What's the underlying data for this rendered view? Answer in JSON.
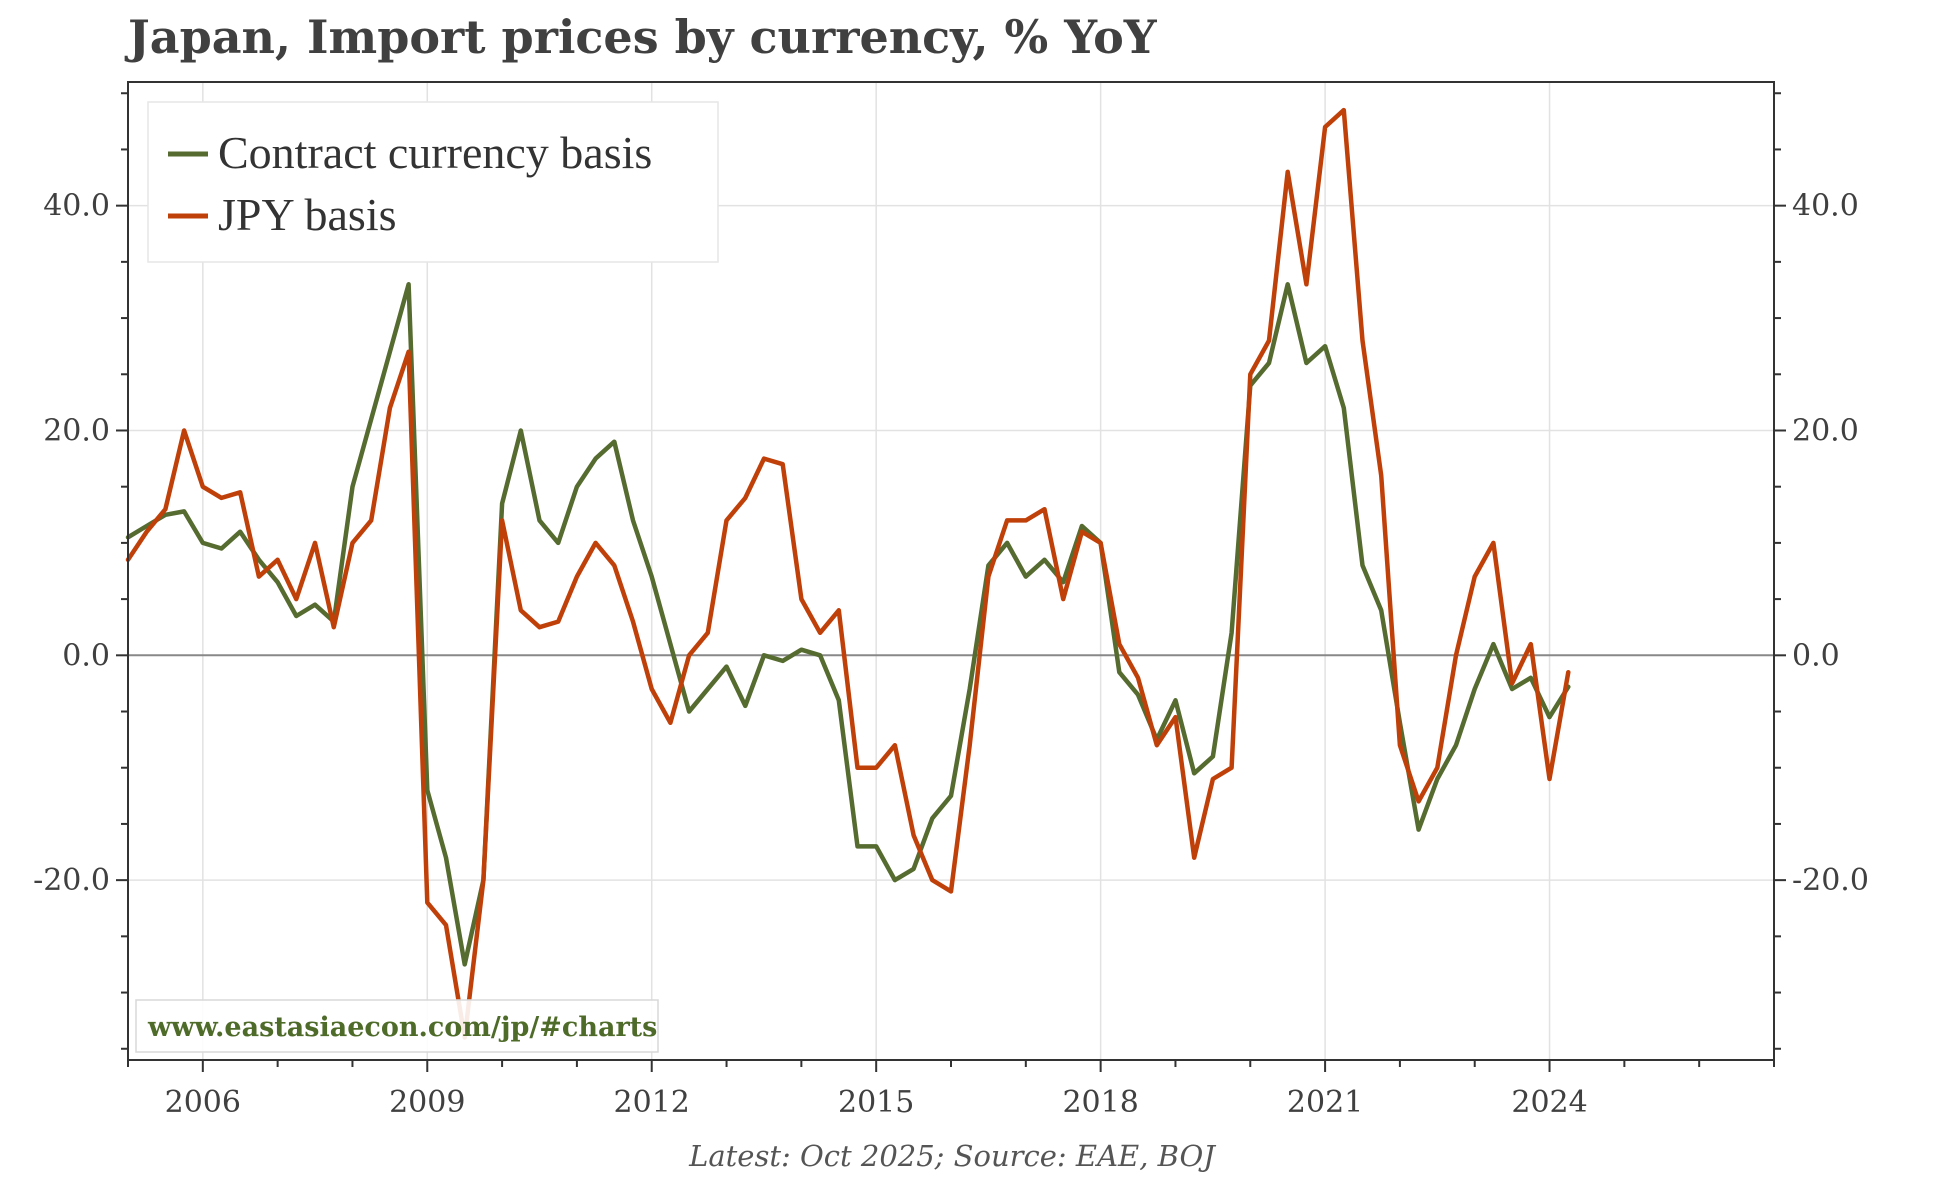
{
  "title": "Japan, Import prices by currency, % YoY",
  "footer": "Latest: Oct 2025; Source: EAE, BOJ",
  "watermark": "www.eastasiaecon.com/jp/#charts",
  "colors": {
    "contract": "#556b2f",
    "jpy": "#c0400a",
    "zero_line": "#888888",
    "grid": "#e2e2e2",
    "axis": "#333333"
  },
  "chart_data": {
    "type": "line",
    "title": "Japan, Import prices by currency, % YoY",
    "xlim": [
      2005.0,
      2027.0
    ],
    "ylim": [
      -36,
      51
    ],
    "x_ticks": [
      2006,
      2009,
      2012,
      2015,
      2018,
      2021,
      2024
    ],
    "x_tick_labels": [
      "2006",
      "2009",
      "2012",
      "2015",
      "2018",
      "2021",
      "2024"
    ],
    "y_ticks": [
      -20,
      0,
      20,
      40
    ],
    "y_tick_labels": [
      "-20.0",
      "0.0",
      "20.0",
      "40.0"
    ],
    "grid": true,
    "legend": "top-left",
    "x_start": "Jan 2005",
    "x_step_months": 3,
    "series": [
      {
        "name": "Contract currency basis",
        "color": "#556b2f",
        "values": [
          10.5,
          11.5,
          12.5,
          12.8,
          10.0,
          9.5,
          11.0,
          8.5,
          6.5,
          3.5,
          4.5,
          3.0,
          15.0,
          21.0,
          27.0,
          33.0,
          -12.0,
          -18.0,
          -27.5,
          -20.0,
          13.5,
          20.0,
          12.0,
          10.0,
          15.0,
          17.5,
          19.0,
          12.0,
          7.0,
          1.0,
          -5.0,
          -3.0,
          -1.0,
          -4.5,
          0.0,
          -0.5,
          0.5,
          0.0,
          -4.0,
          -17.0,
          -17.0,
          -20.0,
          -19.0,
          -14.5,
          -12.5,
          -3.0,
          8.0,
          10.0,
          7.0,
          8.5,
          6.5,
          11.5,
          10.0,
          -1.5,
          -3.5,
          -7.5,
          -4.0,
          -10.5,
          -9.0,
          2.0,
          24.0,
          26.0,
          33.0,
          26.0,
          27.5,
          22.0,
          8.0,
          4.0,
          -6.0,
          -15.5,
          -11.0,
          -8.0,
          -3.0,
          1.0,
          -3.0,
          -2.0,
          -5.5,
          -2.8
        ]
      },
      {
        "name": "JPY basis",
        "color": "#c0400a",
        "values": [
          8.5,
          11.0,
          13.0,
          20.0,
          15.0,
          14.0,
          14.5,
          7.0,
          8.5,
          5.0,
          10.0,
          2.5,
          10.0,
          12.0,
          22.0,
          27.0,
          -22.0,
          -24.0,
          -34.0,
          -20.0,
          12.0,
          4.0,
          2.5,
          3.0,
          7.0,
          10.0,
          8.0,
          3.0,
          -3.0,
          -6.0,
          0.0,
          2.0,
          12.0,
          14.0,
          17.5,
          17.0,
          5.0,
          2.0,
          4.0,
          -10.0,
          -10.0,
          -8.0,
          -16.0,
          -20.0,
          -21.0,
          -8.0,
          7.0,
          12.0,
          12.0,
          13.0,
          5.0,
          11.0,
          10.0,
          1.0,
          -2.0,
          -8.0,
          -5.5,
          -18.0,
          -11.0,
          -10.0,
          25.0,
          28.0,
          43.0,
          33.0,
          47.0,
          48.5,
          28.0,
          16.0,
          -8.0,
          -13.0,
          -10.0,
          0.0,
          7.0,
          10.0,
          -2.5,
          1.0,
          -11.0,
          -1.5
        ]
      }
    ]
  }
}
